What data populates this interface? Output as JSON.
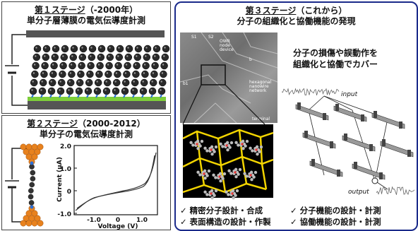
{
  "stage1": {
    "title": "第１ステージ",
    "period": "（-2000年）",
    "subtitle": "単分子層薄膜の電気伝導度計測"
  },
  "stage2": {
    "title": "第２ステージ",
    "period": "（2000-2012）",
    "subtitle": "単分子の電気伝導度計測",
    "plot": {
      "ylabel": "Current (μA)",
      "xlabel": "Voltage (V)",
      "yticks": [
        "2.0",
        "1.0",
        "0",
        "-1.0"
      ],
      "xticks": [
        "-1.0",
        "0",
        "1.0"
      ]
    }
  },
  "stage3": {
    "title": "第３ステージ",
    "period": "（これから）",
    "subtitle": "分子の組織化と協働機能の発現",
    "caption_line1": "分子の損傷や誤動作を",
    "caption_line2": "組織化と協働でカバー",
    "sem_labels": [
      "S1",
      "S2",
      "OWR",
      "node",
      "device",
      "b",
      "hexagonal",
      "nanowire",
      "network",
      "terminal",
      "b1"
    ],
    "input_label": "input",
    "output_label": "output",
    "bullets_left": [
      "✓ 精密分子設計・合成",
      "✓ 表面構造の設計・作製"
    ],
    "bullets_right": [
      "✓ 分子機能の設計・計測",
      "✓ 協働機能の設計・計測"
    ]
  },
  "colors": {
    "frame_blue": "#1a2a8a",
    "electrode": "#555555",
    "molecule": "#2a2a2a",
    "substrate_green": "#7ecf3a",
    "gold": "#e8821e",
    "wire_yellow": "#f2d400"
  }
}
